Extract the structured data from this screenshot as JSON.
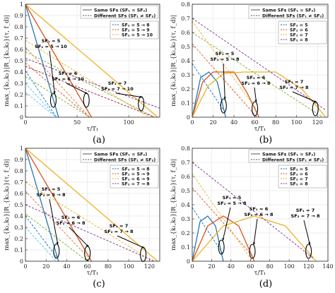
{
  "chart_data": [
    {
      "panel": "(a)",
      "type": "line",
      "xlabel": "τ/T₁",
      "ylabel": "max_{k₁,k₂}|R_{k₁,k₂}(τ, f_d)|",
      "xlim": [
        0,
        130
      ],
      "ylim": [
        0,
        1
      ],
      "xticks": [
        0,
        50,
        100
      ],
      "yticks": [
        0,
        0.1,
        0.2,
        0.3,
        0.4,
        0.5,
        0.6,
        0.7,
        0.8,
        0.9,
        1
      ],
      "legend": {
        "top": [
          "Same SFs (SF₁ = SF₂)",
          "Different SFs (SF₁ ≠ SF₂)"
        ],
        "entries": [
          "SF₂ = 5 → 8",
          "SF₂ = 5 → 9",
          "SF₂ = 5 → 10"
        ]
      },
      "series": [
        {
          "color": "#1f77b4",
          "style": "solid",
          "points": [
            [
              0,
              1
            ],
            [
              32,
              0
            ]
          ]
        },
        {
          "color": "#d95319",
          "style": "solid",
          "points": [
            [
              0,
              1
            ],
            [
              64,
              0
            ]
          ]
        },
        {
          "color": "#edb120",
          "style": "solid",
          "points": [
            [
              0,
              1
            ],
            [
              128,
              0
            ]
          ]
        },
        {
          "color": "#0072bd",
          "style": "dashed",
          "points": [
            [
              0,
              0.41
            ],
            [
              30,
              0
            ]
          ]
        },
        {
          "color": "#e07030",
          "style": "dashed",
          "points": [
            [
              0,
              0.62
            ],
            [
              62,
              0
            ]
          ]
        },
        {
          "color": "#e8b020",
          "style": "dashed",
          "points": [
            [
              0,
              0.68
            ],
            [
              120,
              0
            ]
          ]
        },
        {
          "color": "#4dbeee",
          "style": "dashed",
          "points": [
            [
              0,
              0.3
            ],
            [
              30,
              0
            ]
          ]
        },
        {
          "color": "#d95319",
          "style": "dashed",
          "points": [
            [
              0,
              0.48
            ],
            [
              62,
              0
            ]
          ]
        },
        {
          "color": "#77ac30",
          "style": "dashed",
          "points": [
            [
              0,
              0.58
            ],
            [
              125,
              0
            ]
          ]
        },
        {
          "color": "#7e2f8e",
          "style": "dashed",
          "points": [
            [
              0,
              0.52
            ],
            [
              130,
              0.08
            ]
          ]
        },
        {
          "color": "#4dbeee",
          "style": "dashed",
          "points": [
            [
              0,
              0.22
            ],
            [
              30,
              0
            ]
          ]
        },
        {
          "color": "#77ac30",
          "style": "dashed",
          "points": [
            [
              0,
              0.36
            ],
            [
              62,
              0
            ]
          ]
        },
        {
          "color": "#a2142f",
          "style": "dashed",
          "points": [
            [
              0,
              0.45
            ],
            [
              125,
              0
            ]
          ]
        }
      ],
      "annotations": [
        {
          "lines": [
            "SF₁ = 5",
            "SF₂ = 5 → 10"
          ],
          "target": [
            27,
            0.15
          ]
        },
        {
          "lines": [
            "SF₁ = 6",
            "SF₂ = 6 → 10"
          ],
          "target": [
            59,
            0.15
          ]
        },
        {
          "lines": [
            "SF₁ = 7",
            "SF₂ = 7 → 10"
          ],
          "target": [
            112,
            0.12
          ]
        }
      ]
    },
    {
      "panel": "(b)",
      "type": "line",
      "xlabel": "τ/T₁",
      "ylabel": "max_{k₁,k₂}|R_{k₁,k₂}(τ, f_d)|",
      "xlim": [
        0,
        130
      ],
      "ylim": [
        0,
        0.8
      ],
      "xticks": [
        0,
        20,
        40,
        60,
        80,
        100,
        120
      ],
      "yticks": [
        0,
        0.1,
        0.2,
        0.3,
        0.4,
        0.5,
        0.6,
        0.7,
        0.8
      ],
      "legend": {
        "top": [
          "Same SFs (SF₁ = SF₂)",
          "Different SFs (SF₁ ≠ SF₂)"
        ],
        "entries": [
          "SF₂ = 5",
          "SF₂ = 6",
          "SF₂ = 7",
          "SF₂ = 8"
        ]
      },
      "series": [
        {
          "color": "#1f77b4",
          "style": "solid",
          "points": [
            [
              0,
              0
            ],
            [
              8,
              0.28
            ],
            [
              16,
              0.32
            ],
            [
              24,
              0.25
            ],
            [
              32,
              0
            ]
          ]
        },
        {
          "color": "#d95319",
          "style": "solid",
          "points": [
            [
              0,
              0
            ],
            [
              10,
              0.25
            ],
            [
              20,
              0.32
            ],
            [
              40,
              0.32
            ],
            [
              52,
              0.18
            ],
            [
              64,
              0
            ]
          ]
        },
        {
          "color": "#edb120",
          "style": "solid",
          "points": [
            [
              0,
              0
            ],
            [
              15,
              0.22
            ],
            [
              30,
              0.31
            ],
            [
              50,
              0.32
            ],
            [
              80,
              0.32
            ],
            [
              105,
              0.2
            ],
            [
              128,
              0
            ]
          ]
        },
        {
          "color": "#0072bd",
          "style": "dashed",
          "points": [
            [
              0,
              0.38
            ],
            [
              30,
              0.05
            ]
          ]
        },
        {
          "color": "#d95319",
          "style": "dashed",
          "points": [
            [
              0,
              0.52
            ],
            [
              62,
              0
            ]
          ]
        },
        {
          "color": "#edb120",
          "style": "dashed",
          "points": [
            [
              0,
              0.68
            ],
            [
              62,
              0.05
            ]
          ]
        },
        {
          "color": "#77ac30",
          "style": "dashed",
          "points": [
            [
              0,
              0.6
            ],
            [
              125,
              0
            ]
          ]
        },
        {
          "color": "#7e2f8e",
          "style": "dashed",
          "points": [
            [
              0,
              0.7
            ],
            [
              128,
              0.05
            ]
          ]
        }
      ],
      "annotations": [
        {
          "lines": [
            "SF₁ = 5",
            "SF₂ = 5 → 8"
          ],
          "target": [
            30,
            0.08
          ]
        },
        {
          "lines": [
            "SF₁ = 6",
            "SF₂ = 6 → 8"
          ],
          "target": [
            60,
            0.06
          ]
        },
        {
          "lines": [
            "SF₁ = 7",
            "SF₂ = 7 → 8"
          ],
          "target": [
            118,
            0.06
          ]
        }
      ]
    },
    {
      "panel": "(c)",
      "type": "line",
      "xlabel": "τ/T₁",
      "ylabel": "max_{k₁,k₂}|R_{k₁,k₂}(τ, f_d)|",
      "xlim": [
        0,
        130
      ],
      "ylim": [
        0,
        1
      ],
      "xticks": [
        0,
        20,
        40,
        60,
        80,
        100,
        120
      ],
      "yticks": [
        0,
        0.1,
        0.2,
        0.3,
        0.4,
        0.5,
        0.6,
        0.7,
        0.8,
        0.9,
        1
      ],
      "legend": {
        "top": [
          "Same SFs (SF₁ = SF₂)",
          "Different SFs (SF₁ ≠ SF₂)"
        ],
        "entries": [
          "SF₂ = 5 → 8",
          "SF₂ = 5 → 9",
          "SF₂ = 6 → 9",
          "SF₂ = 7 → 8"
        ]
      },
      "series": [
        {
          "color": "#1f77b4",
          "style": "solid",
          "points": [
            [
              0,
              1
            ],
            [
              32,
              0
            ]
          ]
        },
        {
          "color": "#d95319",
          "style": "solid",
          "points": [
            [
              0,
              1
            ],
            [
              64,
              0
            ]
          ]
        },
        {
          "color": "#edb120",
          "style": "solid",
          "points": [
            [
              0,
              1
            ],
            [
              128,
              0
            ]
          ]
        },
        {
          "color": "#0072bd",
          "style": "dashed",
          "points": [
            [
              0,
              0.4
            ],
            [
              30,
              0.04
            ]
          ]
        },
        {
          "color": "#e07030",
          "style": "dashed",
          "points": [
            [
              0,
              0.62
            ],
            [
              60,
              0.04
            ]
          ]
        },
        {
          "color": "#e8b020",
          "style": "dashed",
          "points": [
            [
              0,
              0.7
            ],
            [
              118,
              0.03
            ]
          ]
        },
        {
          "color": "#7e2f8e",
          "style": "dashed",
          "points": [
            [
              0,
              0.5
            ],
            [
              125,
              0
            ]
          ]
        },
        {
          "color": "#4dbeee",
          "style": "dashed",
          "points": [
            [
              0,
              0.3
            ],
            [
              30,
              0
            ]
          ]
        },
        {
          "color": "#77ac30",
          "style": "dashed",
          "points": [
            [
              0,
              0.42
            ],
            [
              60,
              0
            ]
          ]
        }
      ],
      "annotations": [
        {
          "lines": [
            "SF₁ = 5",
            "SF₂ = 5 → 8"
          ],
          "target": [
            30,
            0.09
          ]
        },
        {
          "lines": [
            "SF₁ = 6",
            "SF₂ = 6 → 8"
          ],
          "target": [
            60,
            0.07
          ]
        },
        {
          "lines": [
            "SF₁ = 7",
            "SF₂ = 7 → 8"
          ],
          "target": [
            114,
            0.06
          ]
        }
      ]
    },
    {
      "panel": "(d)",
      "type": "line",
      "xlabel": "τ/T₁",
      "ylabel": "max_{k₁,k₂}|R_{k₁,k₂}(τ, f_d)|",
      "xlim": [
        0,
        140
      ],
      "ylim": [
        0,
        0.8
      ],
      "xticks": [
        0,
        20,
        40,
        60,
        80,
        100,
        120,
        140
      ],
      "yticks": [
        0,
        0.1,
        0.2,
        0.3,
        0.4,
        0.5,
        0.6,
        0.7,
        0.8
      ],
      "legend": {
        "top": [
          "Same SFs (SF₁ = SF₂)",
          "Different SFs (SF₁ ≠ SF₂)"
        ],
        "entries": [
          "SF₂ = 5",
          "SF₂ = 6",
          "SF₂ = 7",
          "SF₂ = 8"
        ]
      },
      "series": [
        {
          "color": "#1f77b4",
          "style": "solid",
          "points": [
            [
              0,
              0
            ],
            [
              8,
              0.28
            ],
            [
              16,
              0.32
            ],
            [
              24,
              0.25
            ],
            [
              32,
              0
            ]
          ]
        },
        {
          "color": "#d95319",
          "style": "solid",
          "points": [
            [
              0,
              0
            ],
            [
              16,
              0.25
            ],
            [
              32,
              0.32
            ],
            [
              48,
              0.25
            ],
            [
              64,
              0
            ]
          ]
        },
        {
          "color": "#edb120",
          "style": "solid",
          "points": [
            [
              0,
              0
            ],
            [
              32,
              0.25
            ],
            [
              64,
              0.32
            ],
            [
              96,
              0.25
            ],
            [
              128,
              0
            ]
          ]
        },
        {
          "color": "#0072bd",
          "style": "dashed",
          "points": [
            [
              0,
              0.38
            ],
            [
              32,
              0.05
            ]
          ]
        },
        {
          "color": "#d95319",
          "style": "dashed",
          "points": [
            [
              0,
              0.52
            ],
            [
              62,
              0.04
            ]
          ]
        },
        {
          "color": "#edb120",
          "style": "dashed",
          "points": [
            [
              0,
              0.62
            ],
            [
              62,
              0
            ]
          ]
        },
        {
          "color": "#7e2f8e",
          "style": "dashed",
          "points": [
            [
              0,
              0.7
            ],
            [
              125,
              0.02
            ]
          ]
        }
      ],
      "annotations": [
        {
          "lines": [
            "SF₁ = 5",
            "SF₂ = 5 → 8"
          ],
          "target": [
            30,
            0.1
          ]
        },
        {
          "lines": [
            "SF₁ = 6",
            "SF₂ = 6 → 8"
          ],
          "target": [
            62,
            0.07
          ]
        },
        {
          "lines": [
            "SF₁ = 7",
            "SF₂ = 7 → 8"
          ],
          "target": [
            120,
            0.07
          ]
        }
      ]
    }
  ]
}
